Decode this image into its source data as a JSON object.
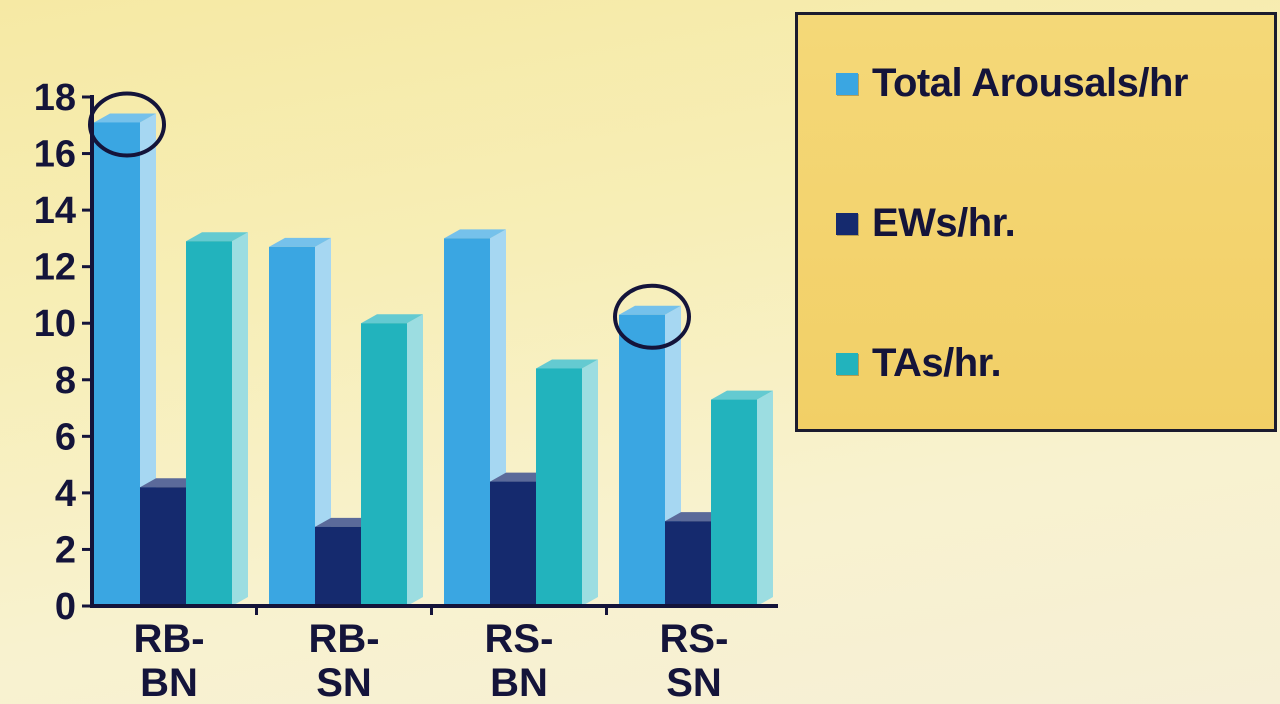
{
  "colors": {
    "total_arousals": "#3aa6e2",
    "ews": "#152a6e",
    "tas": "#22b3bd",
    "axis": "#14143a",
    "circle": "#14143a"
  },
  "legend": {
    "items": [
      {
        "label": "Total Arousals/hr",
        "color": "#3aa6e2"
      },
      {
        "label": "EWs/hr.",
        "color": "#152a6e"
      },
      {
        "label": "TAs/hr.",
        "color": "#22b3bd"
      }
    ]
  },
  "chart_data": {
    "type": "bar",
    "categories": [
      [
        "RB-",
        "BN"
      ],
      [
        "RB-",
        "SN"
      ],
      [
        "RS-",
        "BN"
      ],
      [
        "RS-",
        "SN"
      ]
    ],
    "series": [
      {
        "name": "Total Arousals/hr",
        "values": [
          17.1,
          12.7,
          13.0,
          10.3
        ]
      },
      {
        "name": "EWs/hr.",
        "values": [
          4.2,
          2.8,
          4.4,
          3.0
        ]
      },
      {
        "name": "TAs/hr.",
        "values": [
          12.9,
          10.0,
          8.4,
          7.3
        ]
      }
    ],
    "ylim": [
      0,
      18
    ],
    "yticks": [
      "0",
      "2",
      "4",
      "6",
      "8",
      "10",
      "12",
      "14",
      "16",
      "18"
    ],
    "annotations": [
      {
        "type": "circle",
        "category": 0,
        "series": 0
      },
      {
        "type": "circle",
        "category": 3,
        "series": 0
      }
    ],
    "grid": false,
    "legend_position": "top-right"
  }
}
